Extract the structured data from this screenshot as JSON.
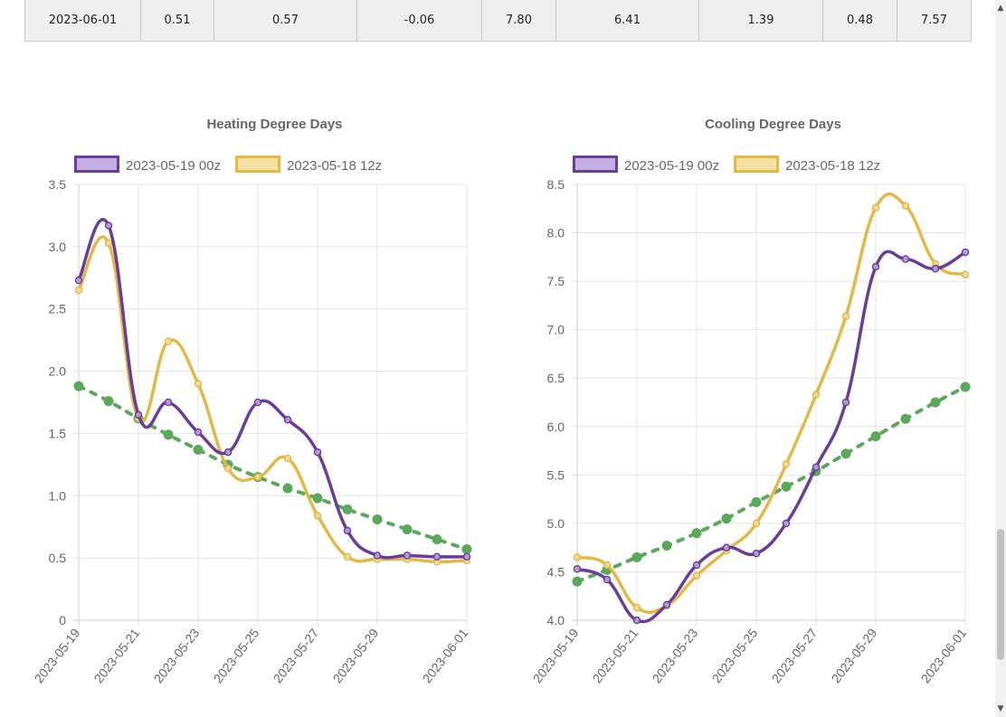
{
  "table_row": {
    "cells": [
      "2023-06-01",
      "0.51",
      "0.57",
      "-0.06",
      "7.80",
      "6.41",
      "1.39",
      "0.48",
      "7.57"
    ]
  },
  "chart_data": [
    {
      "type": "line",
      "title": "Heating Degree Days",
      "x": [
        "2023-05-19",
        "2023-05-20",
        "2023-05-21",
        "2023-05-22",
        "2023-05-23",
        "2023-05-24",
        "2023-05-25",
        "2023-05-26",
        "2023-05-27",
        "2023-05-28",
        "2023-05-29",
        "2023-05-30",
        "2023-05-31",
        "2023-06-01"
      ],
      "tick_labels": [
        "2023-05-19",
        "2023-05-21",
        "2023-05-23",
        "2023-05-25",
        "2023-05-27",
        "2023-05-29",
        "2023-06-01"
      ],
      "yticks": [
        "0",
        "0.5",
        "1.0",
        "1.5",
        "2.0",
        "2.5",
        "3.0",
        "3.5"
      ],
      "ylim": [
        0,
        3.5
      ],
      "grid": true,
      "legend": "top",
      "series": [
        {
          "name": "2023-05-19 00z",
          "color": "#6a3d9a",
          "fill": "#c2aee0",
          "dashed": false,
          "values": [
            2.73,
            3.17,
            1.65,
            1.75,
            1.51,
            1.35,
            1.75,
            1.61,
            1.35,
            0.72,
            0.52,
            0.52,
            0.51,
            0.51
          ]
        },
        {
          "name": "2023-05-18 12z",
          "color": "#e3b944",
          "fill": "#f5e0a6",
          "dashed": false,
          "values": [
            2.65,
            3.03,
            1.62,
            2.24,
            1.9,
            1.22,
            1.15,
            1.3,
            0.84,
            0.51,
            0.49,
            0.49,
            0.47,
            0.48
          ]
        },
        {
          "name": "",
          "color": "#5aa85a",
          "fill": "#5aa85a",
          "dashed": true,
          "values": [
            1.88,
            1.76,
            1.62,
            1.49,
            1.37,
            1.25,
            1.15,
            1.06,
            0.98,
            0.89,
            0.81,
            0.73,
            0.65,
            0.57
          ]
        }
      ]
    },
    {
      "type": "line",
      "title": "Cooling Degree Days",
      "x": [
        "2023-05-19",
        "2023-05-20",
        "2023-05-21",
        "2023-05-22",
        "2023-05-23",
        "2023-05-24",
        "2023-05-25",
        "2023-05-26",
        "2023-05-27",
        "2023-05-28",
        "2023-05-29",
        "2023-05-30",
        "2023-05-31",
        "2023-06-01"
      ],
      "tick_labels": [
        "2023-05-19",
        "2023-05-21",
        "2023-05-23",
        "2023-05-25",
        "2023-05-27",
        "2023-05-29",
        "2023-06-01"
      ],
      "yticks": [
        "4.0",
        "4.5",
        "5.0",
        "5.5",
        "6.0",
        "6.5",
        "7.0",
        "7.5",
        "8.0",
        "8.5"
      ],
      "ylim": [
        4.0,
        8.5
      ],
      "grid": true,
      "legend": "top",
      "series": [
        {
          "name": "2023-05-19 00z",
          "color": "#6a3d9a",
          "fill": "#c2aee0",
          "dashed": false,
          "values": [
            4.53,
            4.42,
            4.0,
            4.16,
            4.57,
            4.75,
            4.69,
            5.0,
            5.58,
            6.25,
            7.65,
            7.73,
            7.63,
            7.8
          ]
        },
        {
          "name": "2023-05-18 12z",
          "color": "#e3b944",
          "fill": "#f5e0a6",
          "dashed": false,
          "values": [
            4.65,
            4.57,
            4.13,
            4.15,
            4.46,
            4.72,
            5.0,
            5.61,
            6.33,
            7.14,
            8.26,
            8.28,
            7.68,
            7.57
          ]
        },
        {
          "name": "",
          "color": "#5aa85a",
          "fill": "#5aa85a",
          "dashed": true,
          "values": [
            4.4,
            4.52,
            4.65,
            4.77,
            4.9,
            5.05,
            5.22,
            5.38,
            5.54,
            5.72,
            5.9,
            6.08,
            6.25,
            6.41
          ]
        }
      ]
    }
  ]
}
